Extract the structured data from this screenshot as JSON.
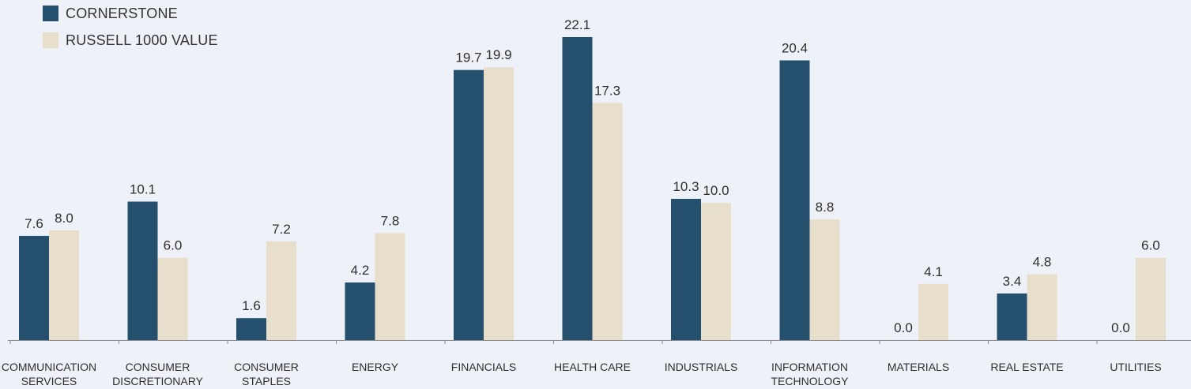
{
  "chart_data": {
    "type": "bar",
    "title": "",
    "xlabel": "",
    "ylabel": "",
    "ylim": [
      0,
      22.1
    ],
    "grid": false,
    "legend_position": "top-left",
    "categories": [
      [
        "COMMUNICATION",
        "SERVICES"
      ],
      [
        "CONSUMER",
        "DISCRETIONARY"
      ],
      [
        "CONSUMER",
        "STAPLES"
      ],
      [
        "ENERGY"
      ],
      [
        "FINANCIALS"
      ],
      [
        "HEALTH CARE"
      ],
      [
        "INDUSTRIALS"
      ],
      [
        "INFORMATION",
        "TECHNOLOGY"
      ],
      [
        "MATERIALS"
      ],
      [
        "REAL ESTATE"
      ],
      [
        "UTILITIES"
      ]
    ],
    "series": [
      {
        "name": "CORNERSTONE",
        "color": "#24506e",
        "values": [
          7.6,
          10.1,
          1.6,
          4.2,
          19.7,
          22.1,
          10.3,
          20.4,
          0.0,
          3.4,
          0.0
        ],
        "labels": [
          "7.6",
          "10.1",
          "1.6",
          "4.2",
          "19.7",
          "22.1",
          "10.3",
          "20.4",
          "0.0",
          "3.4",
          "0.0"
        ]
      },
      {
        "name": "RUSSELL 1000 VALUE",
        "color": "#e7dfcc",
        "values": [
          8.0,
          6.0,
          7.2,
          7.8,
          19.9,
          17.3,
          10.0,
          8.8,
          4.1,
          4.8,
          6.0
        ],
        "labels": [
          "8.0",
          "6.0",
          "7.2",
          "7.8",
          "19.9",
          "17.3",
          "10.0",
          "8.8",
          "4.1",
          "4.8",
          "6.0"
        ]
      }
    ]
  }
}
